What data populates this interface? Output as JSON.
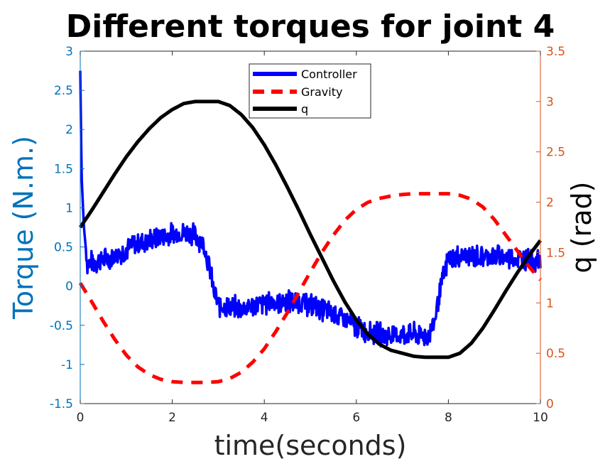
{
  "chart_data": {
    "type": "line",
    "title": "Different torques for joint 4",
    "xlabel": "time(seconds)",
    "ylabel_left": "Torque (N.m.)",
    "ylabel_right": "q (rad)",
    "xlim": [
      0,
      10
    ],
    "ylim_left": [
      -1.5,
      3
    ],
    "ylim_right": [
      0,
      3.5
    ],
    "x_ticks": [
      "0",
      "2",
      "4",
      "6",
      "8",
      "10"
    ],
    "y_left_ticks": [
      "-1.5",
      "-1",
      "-0.5",
      "0",
      "0.5",
      "1",
      "1.5",
      "2",
      "2.5",
      "3"
    ],
    "y_right_ticks": [
      "0",
      "0.5",
      "1",
      "1.5",
      "2",
      "2.5",
      "3",
      "3.5"
    ],
    "grid": false,
    "legend_position": "top-center",
    "colors": {
      "left_axis": "#0072BD",
      "right_axis": "#D95319",
      "controller": "#0000FF",
      "gravity": "#FF0000",
      "q": "#000000"
    },
    "series": [
      {
        "name": "Controller",
        "axis": "left",
        "style": "solid",
        "color": "#0000FF",
        "x": [
          0,
          0.03,
          0.08,
          0.15,
          0.25,
          0.4,
          0.6,
          0.8,
          1.0,
          1.2,
          1.4,
          1.6,
          1.8,
          2.0,
          2.2,
          2.4,
          2.6,
          2.7,
          2.8,
          2.9,
          3.0,
          3.2,
          3.5,
          3.8,
          4.0,
          4.3,
          4.6,
          4.9,
          5.2,
          5.5,
          5.8,
          6.1,
          6.4,
          6.7,
          7.0,
          7.3,
          7.5,
          7.6,
          7.7,
          7.8,
          8.0,
          8.3,
          8.6,
          8.9,
          9.2,
          9.5,
          9.8,
          10.0
        ],
        "values": [
          2.75,
          1.4,
          0.75,
          0.3,
          0.3,
          0.32,
          0.35,
          0.4,
          0.47,
          0.53,
          0.57,
          0.6,
          0.63,
          0.66,
          0.68,
          0.68,
          0.6,
          0.5,
          0.25,
          -0.05,
          -0.25,
          -0.27,
          -0.28,
          -0.25,
          -0.22,
          -0.2,
          -0.2,
          -0.22,
          -0.28,
          -0.35,
          -0.45,
          -0.55,
          -0.6,
          -0.63,
          -0.62,
          -0.62,
          -0.63,
          -0.6,
          -0.45,
          -0.1,
          0.35,
          0.38,
          0.38,
          0.38,
          0.37,
          0.35,
          0.35,
          0.3
        ],
        "noise_amplitude": 0.17
      },
      {
        "name": "Gravity",
        "axis": "left",
        "style": "dashed",
        "color": "#FF0000",
        "x": [
          0,
          0.25,
          0.5,
          0.75,
          1.0,
          1.25,
          1.5,
          1.75,
          2.0,
          2.25,
          2.5,
          2.75,
          3.0,
          3.25,
          3.5,
          3.75,
          4.0,
          4.25,
          4.5,
          4.75,
          5.0,
          5.25,
          5.5,
          5.75,
          6.0,
          6.25,
          6.5,
          6.75,
          7.0,
          7.25,
          7.5,
          7.75,
          8.0,
          8.25,
          8.5,
          8.75,
          9.0,
          9.25,
          9.5,
          9.75,
          10.0
        ],
        "values": [
          0.04,
          -0.2,
          -0.45,
          -0.68,
          -0.88,
          -1.03,
          -1.13,
          -1.19,
          -1.22,
          -1.23,
          -1.23,
          -1.23,
          -1.22,
          -1.18,
          -1.1,
          -0.97,
          -0.8,
          -0.58,
          -0.34,
          -0.08,
          0.18,
          0.43,
          0.65,
          0.84,
          0.98,
          1.07,
          1.12,
          1.15,
          1.17,
          1.18,
          1.18,
          1.18,
          1.18,
          1.16,
          1.11,
          1.01,
          0.85,
          0.65,
          0.45,
          0.25,
          0.08
        ]
      },
      {
        "name": "q",
        "axis": "right",
        "style": "solid",
        "color": "#000000",
        "x": [
          0,
          0.25,
          0.5,
          0.75,
          1.0,
          1.25,
          1.5,
          1.75,
          2.0,
          2.25,
          2.5,
          2.75,
          3.0,
          3.25,
          3.5,
          3.75,
          4.0,
          4.25,
          4.5,
          4.75,
          5.0,
          5.25,
          5.5,
          5.75,
          6.0,
          6.25,
          6.5,
          6.75,
          7.0,
          7.25,
          7.5,
          7.75,
          8.0,
          8.25,
          8.5,
          8.75,
          9.0,
          9.25,
          9.5,
          9.75,
          10.0
        ],
        "values": [
          1.75,
          1.92,
          2.1,
          2.28,
          2.45,
          2.6,
          2.73,
          2.84,
          2.92,
          2.98,
          3.0,
          3.0,
          3.0,
          2.96,
          2.87,
          2.74,
          2.57,
          2.37,
          2.15,
          1.92,
          1.68,
          1.45,
          1.22,
          1.01,
          0.83,
          0.69,
          0.59,
          0.53,
          0.5,
          0.47,
          0.46,
          0.46,
          0.46,
          0.5,
          0.6,
          0.75,
          0.93,
          1.12,
          1.3,
          1.47,
          1.62
        ]
      }
    ]
  }
}
